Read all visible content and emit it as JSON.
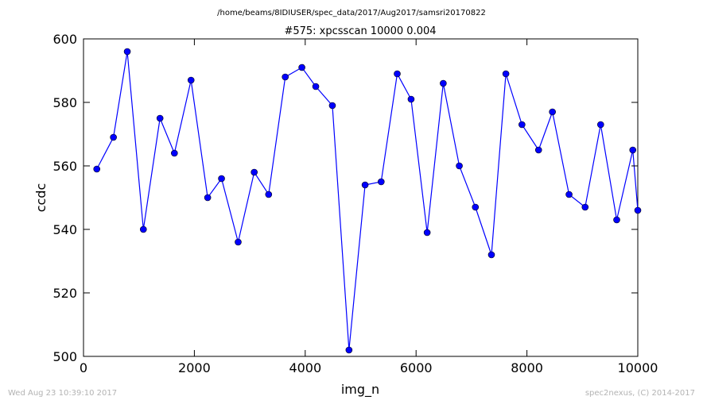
{
  "figure": {
    "suptitle": "/home/beams/8IDIUSER/spec_data/2017/Aug2017/samsri20170822",
    "timestamp": "Wed Aug 23 10:39:10 2017",
    "credit": "spec2nexus, (C) 2014-2017"
  },
  "chart_data": {
    "type": "line",
    "title": "#575: xpcsscan 10000 0.004",
    "xlabel": "img_n",
    "ylabel": "ccdc",
    "xlim": [
      0,
      10000
    ],
    "ylim": [
      500,
      600
    ],
    "xticks": [
      0,
      2000,
      4000,
      6000,
      8000,
      10000
    ],
    "yticks": [
      500,
      520,
      540,
      560,
      580,
      600
    ],
    "xtick_labels": [
      "0",
      "2000",
      "4000",
      "6000",
      "8000",
      "10000"
    ],
    "ytick_labels": [
      "500",
      "520",
      "540",
      "560",
      "580",
      "600"
    ],
    "grid": false,
    "marker": "o",
    "color": "#0000ff",
    "series": [
      {
        "x": [
          240,
          540,
          790,
          1080,
          1380,
          1640,
          1940,
          2240,
          2490,
          2790,
          3080,
          3340,
          3640,
          3940,
          4190,
          4490,
          4790,
          5080,
          5370,
          5660,
          5910,
          6200,
          6490,
          6780,
          7070,
          7360,
          7620,
          7910,
          8210,
          8460,
          8760,
          9050,
          9330,
          9620,
          9910,
          10000
        ],
        "y": [
          559,
          569,
          596,
          540,
          575,
          564,
          587,
          550,
          556,
          536,
          558,
          551,
          588,
          591,
          585,
          579,
          502,
          554,
          555,
          589,
          581,
          539,
          586,
          560,
          547,
          532,
          589,
          573,
          565,
          577,
          551,
          547,
          573,
          543,
          565,
          546
        ]
      }
    ]
  }
}
